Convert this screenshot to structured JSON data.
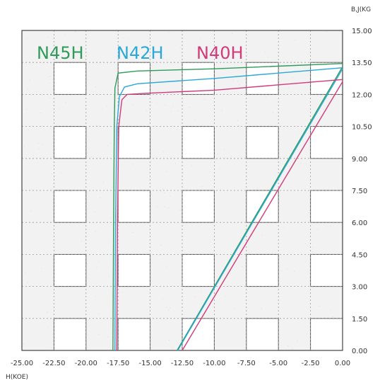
{
  "chart_data": {
    "type": "line",
    "title": "",
    "xlabel": "H(KOE)",
    "ylabel": "B,J(KG",
    "xlim": [
      -25,
      0
    ],
    "ylim": [
      0,
      15
    ],
    "grid": true,
    "legend_position": "top-left",
    "x_ticks": [
      "-25.00",
      "-22.50",
      "-20.00",
      "-17.50",
      "-15.00",
      "-12.50",
      "-10.00",
      "-7.50",
      "-5.00",
      "-2.50",
      "0.00"
    ],
    "y_ticks": [
      "0.00",
      "1.50",
      "3.00",
      "4.50",
      "6.00",
      "7.50",
      "9.00",
      "10.50",
      "12.00",
      "13.50",
      "15.00"
    ],
    "series": [
      {
        "name": "N45H",
        "color": "#2e9b5a",
        "j_curve": [
          [
            -17.9,
            0
          ],
          [
            -17.85,
            6
          ],
          [
            -17.8,
            10.5
          ],
          [
            -17.75,
            12.3
          ],
          [
            -17.5,
            13.0
          ],
          [
            -16.0,
            13.1
          ],
          [
            -10,
            13.2
          ],
          [
            0,
            13.45
          ]
        ],
        "b_line": [
          [
            -12.9,
            0
          ],
          [
            0,
            13.3
          ]
        ]
      },
      {
        "name": "N42H",
        "color": "#2aa8d8",
        "j_curve": [
          [
            -17.75,
            0
          ],
          [
            -17.7,
            6
          ],
          [
            -17.6,
            10.5
          ],
          [
            -17.4,
            11.9
          ],
          [
            -17.0,
            12.35
          ],
          [
            -16.0,
            12.5
          ],
          [
            -10,
            12.75
          ],
          [
            0,
            13.25
          ]
        ],
        "b_line": [
          [
            -12.85,
            0
          ],
          [
            0,
            13.2
          ]
        ]
      },
      {
        "name": "N40H",
        "color": "#d23a7a",
        "j_curve": [
          [
            -17.6,
            0
          ],
          [
            -17.55,
            6
          ],
          [
            -17.45,
            10.5
          ],
          [
            -17.2,
            11.75
          ],
          [
            -16.8,
            12.0
          ],
          [
            -15.5,
            12.05
          ],
          [
            -10,
            12.2
          ],
          [
            0,
            12.7
          ]
        ],
        "b_line": [
          [
            -12.5,
            0
          ],
          [
            0,
            12.6
          ]
        ]
      }
    ]
  }
}
